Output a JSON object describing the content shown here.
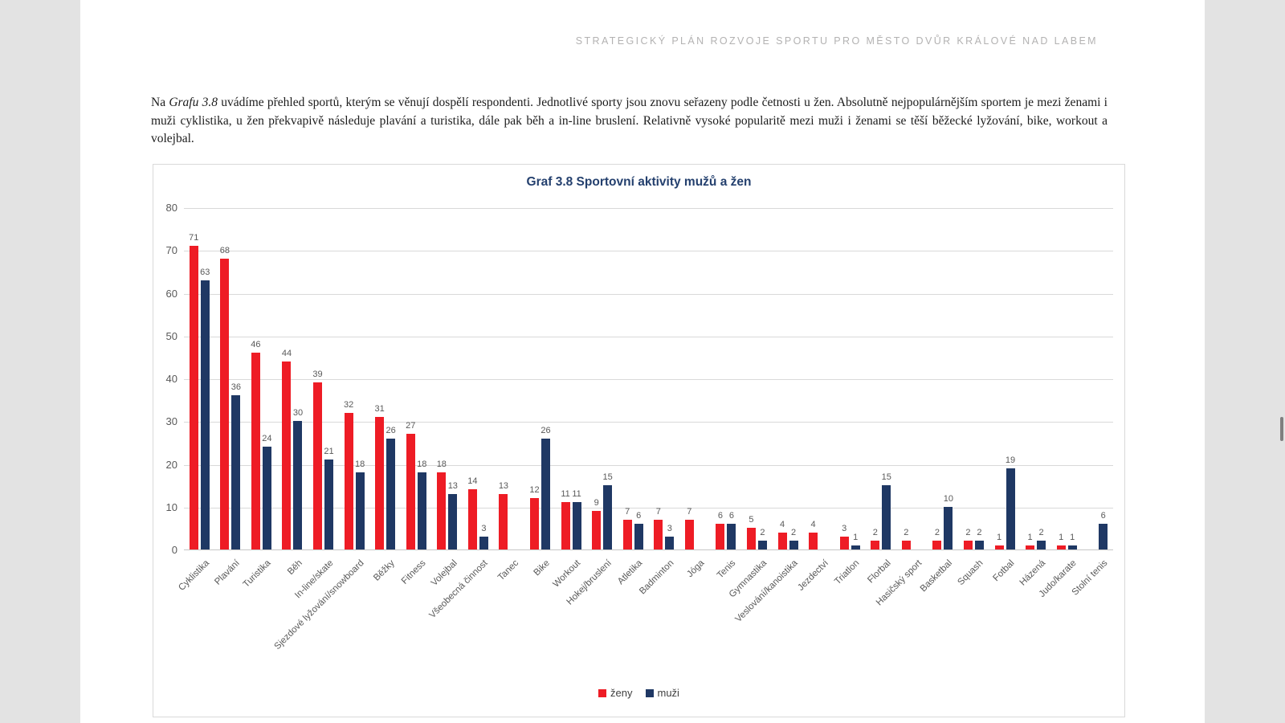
{
  "header": {
    "title": "STRATEGICKÝ PLÁN ROZVOJE SPORTU PRO MĚSTO DVŮR KRÁLOVÉ NAD LABEM"
  },
  "paragraph": {
    "text_before_italic": "Na ",
    "italic_text": "Grafu 3.8",
    "text_after_italic": " uvádíme přehled sportů, kterým se věnují dospělí respondenti. Jednotlivé sporty jsou znovu seřazeny podle četnosti u žen. Absolutně nejpopulárnějším sportem je mezi ženami i muži cyklistika, u žen překvapivě následuje plavání a turistika, dále pak běh a in-line bruslení. Relativně vysoké popularitě mezi muži i ženami se těší běžecké lyžování, bike, workout a volejbal."
  },
  "chart_data": {
    "type": "bar",
    "title": "Graf 3.8 Sportovní aktivity mužů a žen",
    "title_color": "#24406e",
    "categories": [
      "Cyklistika",
      "Plavání",
      "Turistika",
      "Běh",
      "In-line/skate",
      "Sjezdové lyžování/snowboard",
      "Běžky",
      "Fitness",
      "Volejbal",
      "Všeobecná činnost",
      "Tanec",
      "Bike",
      "Workout",
      "Hokej/bruslení",
      "Atletika",
      "Badminton",
      "Jóga",
      "Tenis",
      "Gymnastika",
      "Veslování/kanoistika",
      "Jezdectví",
      "Triatlon",
      "Florbal",
      "Hasičský sport",
      "Basketbal",
      "Squash",
      "Fotbal",
      "Házená",
      "Judo/karate",
      "Stolní tenis"
    ],
    "series": [
      {
        "name": "ženy",
        "color": "#ee1c25",
        "values": [
          71,
          68,
          46,
          44,
          39,
          32,
          31,
          27,
          18,
          14,
          13,
          12,
          11,
          9,
          7,
          7,
          7,
          6,
          5,
          4,
          4,
          3,
          2,
          2,
          2,
          2,
          1,
          1,
          1,
          0
        ]
      },
      {
        "name": "muži",
        "color": "#1f3864",
        "values": [
          63,
          36,
          24,
          30,
          21,
          18,
          26,
          18,
          13,
          3,
          0,
          26,
          11,
          15,
          6,
          3,
          0,
          6,
          2,
          2,
          0,
          1,
          15,
          0,
          10,
          2,
          19,
          2,
          1,
          6
        ]
      }
    ],
    "ylim": [
      0,
      80
    ],
    "ytick_step": 10,
    "grid": true,
    "legend_position": "bottom",
    "data_labels": true,
    "hide_zero_values": true,
    "label_color": "#595959"
  }
}
